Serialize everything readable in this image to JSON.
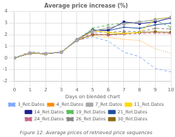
{
  "chart_data": {
    "type": "line",
    "title": "Average price increase (%)",
    "xlabel": "Days on blended chart",
    "subtitle": "Figure 12. Average prices of retrieved price sequences",
    "x": [
      0,
      1,
      2,
      3,
      4,
      5,
      6,
      7,
      8,
      9,
      10
    ],
    "series": [
      {
        "name": "3_Ret.Dates",
        "color": "#7FAAFF",
        "line_style": "dashed",
        "values": [
          0,
          0.55,
          0.4,
          0.5,
          1.5,
          1.8,
          1.45,
          0.5,
          0.1,
          -0.9,
          -1.2
        ]
      },
      {
        "name": "4_Ret.Dates",
        "color": "#FF8C00",
        "line_style": "dotted",
        "values": [
          0,
          0.5,
          0.35,
          0.55,
          1.5,
          1.95,
          1.75,
          1.6,
          1.5,
          0.8,
          0.4
        ]
      },
      {
        "name": "7_Ret.Dates",
        "color": "#A9A9A9",
        "line_style": "solid",
        "marker": "circle",
        "values": [
          0,
          0.4,
          0.35,
          0.5,
          1.5,
          2.3,
          2.6,
          2.9,
          3.1,
          3.3,
          3.5
        ]
      },
      {
        "name": "11_Ret.Dates",
        "color": "#FFD700",
        "line_style": "solid",
        "marker": "plus",
        "values": [
          0,
          0.4,
          0.35,
          0.5,
          1.55,
          2.35,
          2.2,
          2.1,
          2.2,
          3.35,
          3.5
        ]
      },
      {
        "name": "14_Ret.Dates",
        "color": "#1F1F8F",
        "line_style": "solid",
        "marker": "square",
        "values": [
          0,
          0.4,
          0.35,
          0.5,
          1.55,
          2.4,
          2.4,
          3.1,
          2.95,
          3.1,
          3.45
        ]
      },
      {
        "name": "19_Ret.Dates",
        "color": "#5BBF5B",
        "line_style": "dashed",
        "marker": "x",
        "values": [
          0,
          0.45,
          0.35,
          0.5,
          1.55,
          2.55,
          2.85,
          3.0,
          3.1,
          3.25,
          2.65
        ]
      },
      {
        "name": "21_Ret.Dates",
        "color": "#1F50A0",
        "line_style": "solid",
        "marker": "plus",
        "values": [
          0,
          0.4,
          0.35,
          0.5,
          1.6,
          2.4,
          2.35,
          2.65,
          2.55,
          2.85,
          3.0
        ]
      },
      {
        "name": "24_Ret.Dates",
        "color": "#CC6688",
        "line_style": "dashed",
        "marker": "plus",
        "values": [
          0,
          0.4,
          0.35,
          0.5,
          1.5,
          2.1,
          1.95,
          2.05,
          2.1,
          2.15,
          2.1
        ]
      },
      {
        "name": "26_Ret.Dates",
        "color": "#888888",
        "line_style": "dashed",
        "marker": "triangle",
        "values": [
          0,
          0.4,
          0.35,
          0.5,
          1.5,
          2.25,
          2.2,
          2.3,
          2.25,
          2.55,
          2.5
        ]
      },
      {
        "name": "30_Ret.Dates",
        "color": "#8B6914",
        "line_style": "solid",
        "marker": "circle",
        "values": [
          0,
          0.4,
          0.35,
          0.5,
          1.5,
          2.0,
          2.0,
          2.1,
          2.2,
          2.25,
          2.2
        ]
      }
    ],
    "xlim": [
      0,
      10
    ],
    "ylim": [
      -2,
      4
    ],
    "xticks": [
      0,
      1,
      2,
      3,
      4,
      5,
      6,
      7,
      8,
      9,
      10
    ],
    "yticks": [
      -2,
      -1,
      0,
      1,
      2,
      3,
      4
    ],
    "grid": true,
    "legend": "bottom"
  }
}
